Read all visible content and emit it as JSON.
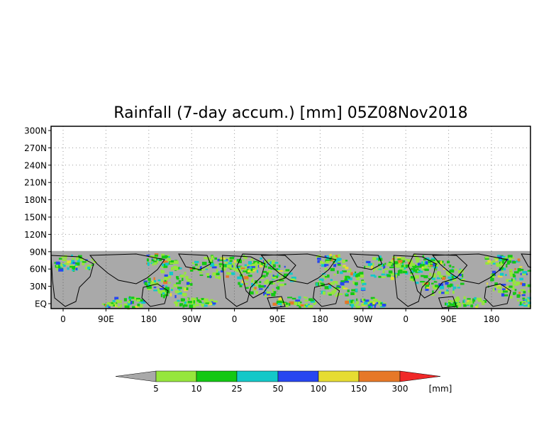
{
  "title": "Rainfall (7-day accum.) [mm] 05Z08Nov2018",
  "map": {
    "y_ticks": [
      "300N",
      "270N",
      "240N",
      "210N",
      "180N",
      "150N",
      "120N",
      "90N",
      "60N",
      "30N",
      "EQ"
    ],
    "x_ticks": [
      "0",
      "90E",
      "180",
      "90W",
      "0",
      "90E",
      "180",
      "90W",
      "0",
      "90E",
      "180"
    ],
    "grid": "dotted",
    "no_data_color": "#a9a9a9",
    "land_outline_color": "#000000"
  },
  "colorbar": {
    "unit_label": "[mm]",
    "tick_labels": [
      "5",
      "10",
      "25",
      "50",
      "100",
      "150",
      "300"
    ],
    "colors": [
      "#a9a9a9",
      "#96e63c",
      "#14c814",
      "#14c8c8",
      "#2846f0",
      "#e6dc32",
      "#e67828",
      "#f02828"
    ]
  }
}
